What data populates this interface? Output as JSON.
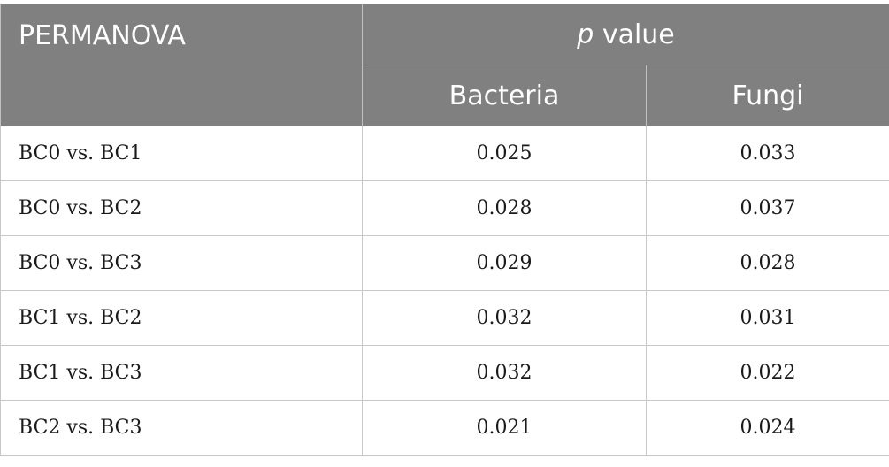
{
  "header": {
    "title": "PERMANOVA",
    "group_italic": "p",
    "group_rest": " value",
    "columns": [
      "Bacteria",
      "Fungi"
    ]
  },
  "rows": [
    {
      "comparison": "BC0 vs. BC1",
      "bacteria": "0.025",
      "fungi": "0.033"
    },
    {
      "comparison": "BC0 vs. BC2",
      "bacteria": "0.028",
      "fungi": "0.037"
    },
    {
      "comparison": "BC0 vs. BC3",
      "bacteria": "0.029",
      "fungi": "0.028"
    },
    {
      "comparison": "BC1 vs. BC2",
      "bacteria": "0.032",
      "fungi": "0.031"
    },
    {
      "comparison": "BC1 vs. BC3",
      "bacteria": "0.032",
      "fungi": "0.022"
    },
    {
      "comparison": "BC2 vs. BC3",
      "bacteria": "0.021",
      "fungi": "0.024"
    }
  ],
  "colors": {
    "header_bg": "#808080",
    "header_text": "#ffffff",
    "grid": "#c8c8c8"
  }
}
